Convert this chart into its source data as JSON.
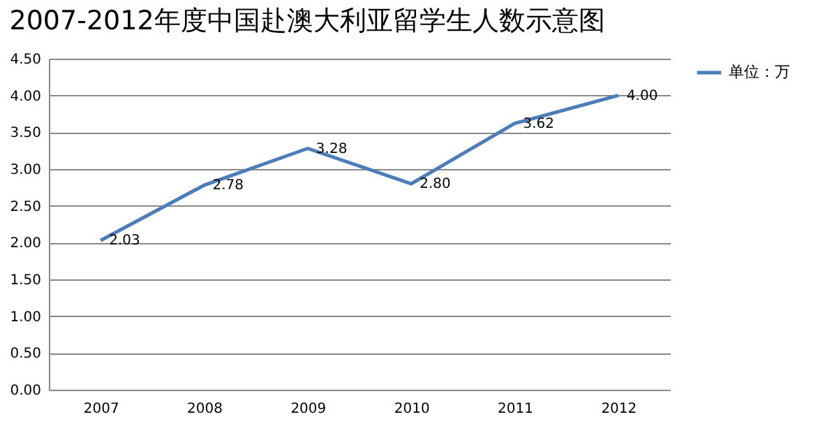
{
  "chart_data": {
    "type": "line",
    "title": "2007-2012年度中国赴澳大利亚留学生人数示意图",
    "categories": [
      "2007",
      "2008",
      "2009",
      "2010",
      "2011",
      "2012"
    ],
    "series": [
      {
        "name": "单位：万",
        "color": "#4a7ebb",
        "values": [
          2.03,
          2.78,
          3.28,
          2.8,
          3.62,
          4.0
        ],
        "value_labels": [
          "2.03",
          "2.78",
          "3.28",
          "2.80",
          "3.62",
          "4.00"
        ]
      }
    ],
    "ylim": [
      0,
      4.5
    ],
    "yticks": [
      {
        "value": 0,
        "label": "0.00"
      },
      {
        "value": 0.5,
        "label": "0.50"
      },
      {
        "value": 1,
        "label": "1.00"
      },
      {
        "value": 1.5,
        "label": "1.50"
      },
      {
        "value": 2,
        "label": "2.00"
      },
      {
        "value": 2.5,
        "label": "2.50"
      },
      {
        "value": 3,
        "label": "3.00"
      },
      {
        "value": 3.5,
        "label": "3.50"
      },
      {
        "value": 4,
        "label": "4.00"
      },
      {
        "value": 4.5,
        "label": "4.50"
      }
    ],
    "grid": "y",
    "legend": "right",
    "marker": "none",
    "line_style": "solid"
  }
}
